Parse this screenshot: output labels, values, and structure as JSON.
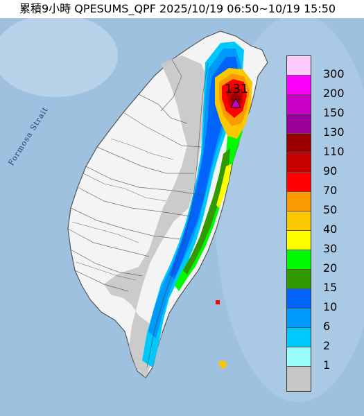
{
  "title": "累積9小時 QPESUMS_QPF 2025/10/19 06:50~10/19 15:50",
  "strait_label": "Formosa Strait",
  "max_value": "131",
  "legend": [
    {
      "label": "300",
      "color": "#fdc8fb"
    },
    {
      "label": "200",
      "color": "#fb00fb"
    },
    {
      "label": "150",
      "color": "#c800c8"
    },
    {
      "label": "130",
      "color": "#990099"
    },
    {
      "label": "110",
      "color": "#9a0000"
    },
    {
      "label": "90",
      "color": "#c80000"
    },
    {
      "label": "70",
      "color": "#ff0000"
    },
    {
      "label": "50",
      "color": "#fb9a00"
    },
    {
      "label": "40",
      "color": "#fbc800"
    },
    {
      "label": "30",
      "color": "#ffff00"
    },
    {
      "label": "20",
      "color": "#00fb00"
    },
    {
      "label": "15",
      "color": "#329900"
    },
    {
      "label": "10",
      "color": "#0064fb"
    },
    {
      "label": "6",
      "color": "#0099fb"
    },
    {
      "label": "2",
      "color": "#00c8fb"
    },
    {
      "label": "1",
      "color": "#9afbfb"
    },
    {
      "label": "",
      "color": "#c8c8c8"
    }
  ]
}
